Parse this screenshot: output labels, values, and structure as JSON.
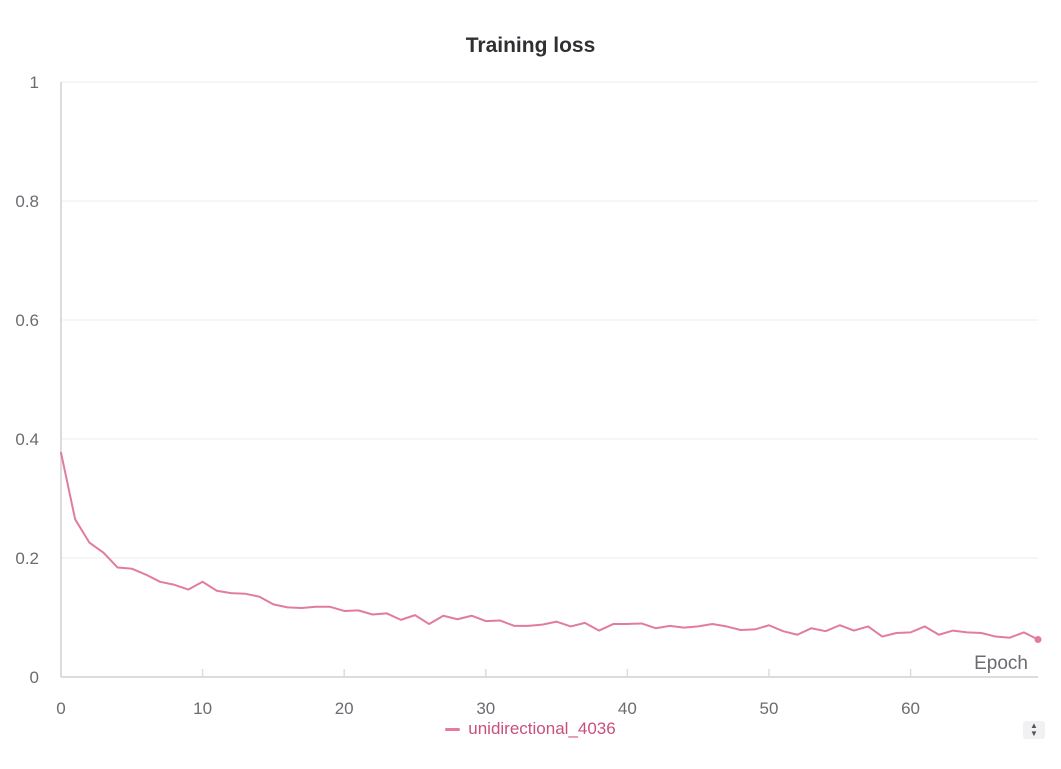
{
  "chart_data": {
    "type": "line",
    "title": "Training loss",
    "xlabel": "Epoch",
    "ylabel": "",
    "xlim": [
      0,
      69
    ],
    "ylim": [
      0,
      1
    ],
    "xticks": [
      0,
      10,
      20,
      30,
      40,
      50,
      60
    ],
    "yticks": [
      0,
      0.2,
      0.4,
      0.6,
      0.8,
      1
    ],
    "ytick_labels": [
      "0",
      "0.2",
      "0.4",
      "0.6",
      "0.8",
      "1"
    ],
    "grid": true,
    "legend_position": "bottom-center",
    "series": [
      {
        "name": "unidirectional_4036",
        "color": "#e27c9f",
        "x": [
          0,
          1,
          2,
          3,
          4,
          5,
          6,
          7,
          8,
          9,
          10,
          11,
          12,
          13,
          14,
          15,
          16,
          17,
          18,
          19,
          20,
          21,
          22,
          23,
          24,
          25,
          26,
          27,
          28,
          29,
          30,
          31,
          32,
          33,
          34,
          35,
          36,
          37,
          38,
          39,
          40,
          41,
          42,
          43,
          44,
          45,
          46,
          47,
          48,
          49,
          50,
          51,
          52,
          53,
          54,
          55,
          56,
          57,
          58,
          59,
          60,
          61,
          62,
          63,
          64,
          65,
          66,
          67,
          68,
          69
        ],
        "y": [
          0.377,
          0.265,
          0.226,
          0.209,
          0.184,
          0.182,
          0.172,
          0.16,
          0.155,
          0.147,
          0.16,
          0.145,
          0.141,
          0.14,
          0.135,
          0.122,
          0.117,
          0.116,
          0.118,
          0.118,
          0.111,
          0.112,
          0.105,
          0.107,
          0.096,
          0.104,
          0.089,
          0.103,
          0.097,
          0.103,
          0.094,
          0.095,
          0.086,
          0.086,
          0.088,
          0.093,
          0.085,
          0.091,
          0.078,
          0.089,
          0.089,
          0.09,
          0.082,
          0.086,
          0.083,
          0.085,
          0.089,
          0.085,
          0.079,
          0.08,
          0.087,
          0.077,
          0.071,
          0.082,
          0.077,
          0.087,
          0.078,
          0.085,
          0.068,
          0.074,
          0.075,
          0.085,
          0.071,
          0.078,
          0.075,
          0.074,
          0.068,
          0.066,
          0.075,
          0.063
        ]
      }
    ]
  },
  "controls": {
    "scroll_up_icon": "▲",
    "scroll_down_icon": "▼"
  }
}
